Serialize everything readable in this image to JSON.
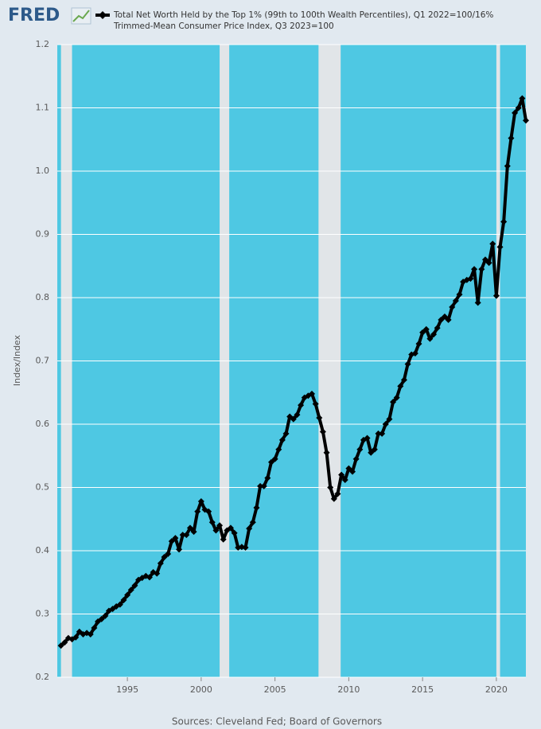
{
  "logo": "FRED",
  "chart_data": {
    "type": "line",
    "series": [
      {
        "name": "Total Net Worth Held by the Top 1% (99th to 100th Wealth Percentiles), Q1 2022=100/16% Trimmed-Mean Consumer Price Index, Q3 2023=100",
        "color": "#000000",
        "values": [
          0.25,
          0.255,
          0.262,
          0.26,
          0.263,
          0.272,
          0.268,
          0.27,
          0.268,
          0.278,
          0.288,
          0.292,
          0.297,
          0.305,
          0.308,
          0.312,
          0.315,
          0.322,
          0.33,
          0.338,
          0.345,
          0.354,
          0.357,
          0.36,
          0.358,
          0.366,
          0.364,
          0.38,
          0.39,
          0.395,
          0.415,
          0.42,
          0.402,
          0.425,
          0.425,
          0.436,
          0.43,
          0.462,
          0.478,
          0.465,
          0.462,
          0.445,
          0.432,
          0.44,
          0.418,
          0.432,
          0.436,
          0.428,
          0.405,
          0.406,
          0.405,
          0.435,
          0.445,
          0.468,
          0.502,
          0.502,
          0.515,
          0.54,
          0.545,
          0.56,
          0.575,
          0.585,
          0.612,
          0.608,
          0.615,
          0.63,
          0.642,
          0.645,
          0.648,
          0.632,
          0.61,
          0.588,
          0.555,
          0.5,
          0.482,
          0.49,
          0.52,
          0.512,
          0.53,
          0.525,
          0.545,
          0.56,
          0.575,
          0.578,
          0.555,
          0.56,
          0.585,
          0.585,
          0.6,
          0.608,
          0.635,
          0.642,
          0.66,
          0.67,
          0.695,
          0.71,
          0.712,
          0.727,
          0.745,
          0.75,
          0.735,
          0.742,
          0.752,
          0.765,
          0.77,
          0.765,
          0.785,
          0.795,
          0.805,
          0.825,
          0.828,
          0.83,
          0.845,
          0.792,
          0.845,
          0.86,
          0.855,
          0.885,
          0.803,
          0.88,
          0.92,
          1.008,
          1.052,
          1.092,
          1.1,
          1.115,
          1.08
        ]
      }
    ],
    "x": [
      1990.5,
      1990.75,
      1991,
      1991.25,
      1991.5,
      1991.75,
      1992,
      1992.25,
      1992.5,
      1992.75,
      1993,
      1993.25,
      1993.5,
      1993.75,
      1994,
      1994.25,
      1994.5,
      1994.75,
      1995,
      1995.25,
      1995.5,
      1995.75,
      1996,
      1996.25,
      1996.5,
      1996.75,
      1997,
      1997.25,
      1997.5,
      1997.75,
      1998,
      1998.25,
      1998.5,
      1998.75,
      1999,
      1999.25,
      1999.5,
      1999.75,
      2000,
      2000.25,
      2000.5,
      2000.75,
      2001,
      2001.25,
      2001.5,
      2001.75,
      2002,
      2002.25,
      2002.5,
      2002.75,
      2003,
      2003.25,
      2003.5,
      2003.75,
      2004,
      2004.25,
      2004.5,
      2004.75,
      2005,
      2005.25,
      2005.5,
      2005.75,
      2006,
      2006.25,
      2006.5,
      2006.75,
      2007,
      2007.25,
      2007.5,
      2007.75,
      2008,
      2008.25,
      2008.5,
      2008.75,
      2009,
      2009.25,
      2009.5,
      2009.75,
      2010,
      2010.25,
      2010.5,
      2010.75,
      2011,
      2011.25,
      2011.5,
      2011.75,
      2012,
      2012.25,
      2012.5,
      2012.75,
      2013,
      2013.25,
      2013.5,
      2013.75,
      2014,
      2014.25,
      2014.5,
      2014.75,
      2015,
      2015.25,
      2015.5,
      2015.75,
      2016,
      2016.25,
      2016.5,
      2016.75,
      2017,
      2017.25,
      2017.5,
      2017.75,
      2018,
      2018.25,
      2018.5,
      2018.75,
      2019,
      2019.25,
      2019.5,
      2019.75,
      2020,
      2020.25,
      2020.5,
      2020.75,
      2021,
      2021.25,
      2021.5,
      2021.75,
      2022
    ],
    "xlim": [
      1990.25,
      2022
    ],
    "xticks": [
      1995,
      2000,
      2005,
      2010,
      2015,
      2020
    ],
    "ylim": [
      0.2,
      1.2
    ],
    "yticks": [
      0.2,
      0.3,
      0.4,
      0.5,
      0.6,
      0.7,
      0.8,
      0.9,
      {
        "value": 1,
        "label": "1.0"
      },
      1.1,
      1.2
    ],
    "y_label": "Index/Index",
    "grid": true,
    "recessions": [
      [
        1990.5,
        1991.25
      ],
      [
        2001.25,
        2001.9
      ],
      [
        2007.95,
        2009.45
      ],
      [
        2020,
        2020.25
      ]
    ],
    "source": "Sources: Cleveland Fed; Board of Governors"
  }
}
